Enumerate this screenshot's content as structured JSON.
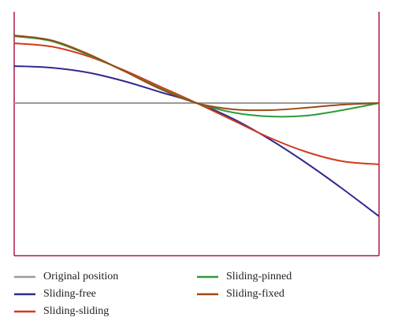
{
  "chart_data": {
    "type": "line",
    "x": [
      0,
      0.1,
      0.2,
      0.3,
      0.4,
      0.5,
      0.6,
      0.7,
      0.8,
      0.9,
      1.0
    ],
    "xlim": [
      0,
      1
    ],
    "ylim": [
      -1.94,
      1.16
    ],
    "series": [
      {
        "name": "Original position",
        "color": "#9a9a9a",
        "values": [
          0,
          0,
          0,
          0,
          0,
          0,
          0,
          0,
          0,
          0,
          0
        ]
      },
      {
        "name": "Sliding-free",
        "color": "#2f2a8e",
        "values": [
          0.47,
          0.45,
          0.39,
          0.28,
          0.14,
          0,
          -0.2,
          -0.46,
          -0.76,
          -1.09,
          -1.44
        ]
      },
      {
        "name": "Sliding-sliding",
        "color": "#d23a1c",
        "values": [
          0.76,
          0.72,
          0.6,
          0.42,
          0.21,
          0,
          -0.22,
          -0.44,
          -0.62,
          -0.74,
          -0.78
        ]
      },
      {
        "name": "Sliding-pinned",
        "color": "#2f9a3a",
        "values": [
          0.85,
          0.79,
          0.62,
          0.41,
          0.19,
          0,
          -0.12,
          -0.17,
          -0.16,
          -0.09,
          0
        ]
      },
      {
        "name": "Sliding-fixed",
        "color": "#9a4a14",
        "values": [
          0.86,
          0.8,
          0.63,
          0.41,
          0.18,
          0,
          -0.08,
          -0.09,
          -0.06,
          -0.02,
          0
        ]
      }
    ]
  }
}
